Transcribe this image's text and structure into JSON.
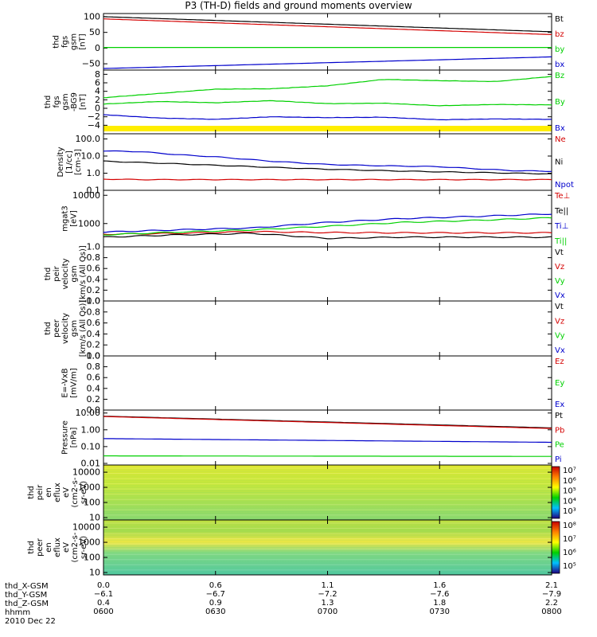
{
  "title": "P3 (TH-D) fields and ground moments overview",
  "date": "2010 Dec 22",
  "colors": {
    "black": "#000000",
    "red": "#d40000",
    "green": "#00d000",
    "blue": "#0000cc",
    "yellow": "#ffee00"
  },
  "chart_data": [
    {
      "type": "line",
      "id": "fgs",
      "ylabel": [
        "thd",
        "fgs",
        "gsm",
        "[nT]"
      ],
      "yrange": [
        -70,
        110
      ],
      "log": false,
      "yticks": [
        {
          "v": 100,
          "l": "100"
        },
        {
          "v": 50,
          "l": "50"
        },
        {
          "v": 0,
          "l": "0"
        },
        {
          "v": -50,
          "l": "−50"
        }
      ],
      "x": [
        0,
        120
      ],
      "series": [
        {
          "name": "Bt",
          "color": "#000000",
          "values": [
            100,
            52
          ]
        },
        {
          "name": "bz",
          "color": "#d40000",
          "values": [
            93,
            43
          ]
        },
        {
          "name": "by",
          "color": "#00d000",
          "values": [
            2,
            2
          ]
        },
        {
          "name": "bx",
          "color": "#0000cc",
          "values": [
            -65,
            -28
          ]
        }
      ]
    },
    {
      "type": "line",
      "id": "fgs_dsl",
      "ylabel": [
        "thd",
        "fgs",
        "gsm",
        "-BG9",
        "[nT]"
      ],
      "yrange": [
        -6,
        9
      ],
      "log": false,
      "yticks": [
        {
          "v": 8,
          "l": "8"
        },
        {
          "v": 6,
          "l": "6"
        },
        {
          "v": 4,
          "l": "4"
        },
        {
          "v": 2,
          "l": "2"
        },
        {
          "v": 0,
          "l": "0"
        },
        {
          "v": -2,
          "l": "−2"
        },
        {
          "v": -4,
          "l": "−4"
        }
      ],
      "x": [
        0,
        15,
        30,
        45,
        60,
        75,
        90,
        105,
        120
      ],
      "series": [
        {
          "name": "Bz",
          "color": "#00d000",
          "values": [
            2.5,
            3.5,
            4.5,
            4.6,
            5.3,
            6.8,
            6.5,
            6.3,
            7.5
          ]
        },
        {
          "name": "By",
          "color": "#00d000",
          "values": [
            1,
            1.6,
            1.3,
            1.8,
            1.1,
            1.2,
            0.6,
            0.9,
            0.8
          ]
        },
        {
          "name": "Bx",
          "color": "#0000cc",
          "values": [
            -1.5,
            -2.3,
            -2.6,
            -2.0,
            -2.2,
            -2.1,
            -2.7,
            -2.5,
            -2.6
          ]
        }
      ]
    },
    {
      "type": "line",
      "id": "density",
      "ylabel": [
        "Density",
        "[1/cc]",
        "[cm-3]"
      ],
      "yrange": [
        0.1,
        200
      ],
      "log": true,
      "yticks": [
        {
          "v": 100,
          "l": "100.0"
        },
        {
          "v": 10,
          "l": "10.0"
        },
        {
          "v": 1,
          "l": "1.0"
        },
        {
          "v": 0.1,
          "l": "0.1"
        }
      ],
      "x": [
        0,
        10,
        20,
        30,
        45,
        60,
        75,
        90,
        100,
        110,
        120
      ],
      "series": [
        {
          "name": "Ne",
          "color": "#d40000",
          "values": [
            0.45,
            0.42,
            0.42,
            0.42,
            0.42,
            0.42,
            0.42,
            0.42,
            0.42,
            0.42,
            0.42
          ]
        },
        {
          "name": "Ni",
          "color": "#000000",
          "values": [
            5,
            4.2,
            3.5,
            2.9,
            2.2,
            1.7,
            1.4,
            1.2,
            1.1,
            1.0,
            0.9
          ]
        },
        {
          "name": "Npot",
          "color": "#0000cc",
          "values": [
            20,
            18,
            12,
            9,
            5,
            3.2,
            2.7,
            2.4,
            1.8,
            1.4,
            1.3
          ]
        }
      ]
    },
    {
      "type": "line",
      "id": "temp",
      "ylabel": [
        "mgat3",
        "[eV]"
      ],
      "yrange": [
        150,
        15000
      ],
      "log": true,
      "yticks": [
        {
          "v": 10000,
          "l": "10000"
        },
        {
          "v": 1000,
          "l": "1000"
        }
      ],
      "x": [
        0,
        20,
        40,
        60,
        80,
        100,
        120
      ],
      "series": [
        {
          "name": "Te⊥",
          "color": "#d40000",
          "values": [
            420,
            450,
            520,
            480,
            470,
            470,
            470
          ]
        },
        {
          "name": "Te||",
          "color": "#000000",
          "values": [
            330,
            400,
            450,
            300,
            330,
            330,
            330
          ]
        },
        {
          "name": "Ti⊥",
          "color": "#0000cc",
          "values": [
            500,
            600,
            700,
            1100,
            1500,
            1800,
            2200
          ]
        },
        {
          "name": "Ti||",
          "color": "#00d000",
          "values": [
            400,
            500,
            600,
            800,
            1100,
            1300,
            1600
          ]
        }
      ]
    },
    {
      "type": "line",
      "id": "peir_v",
      "ylabel": [
        "thd",
        "peir",
        "velocity",
        "gsm",
        "[km/s (All Qs)]"
      ],
      "yrange": [
        0,
        1
      ],
      "log": false,
      "yticks": [
        {
          "v": 1,
          "l": "1.0"
        },
        {
          "v": 0.8,
          "l": "0.8"
        },
        {
          "v": 0.6,
          "l": "0.6"
        },
        {
          "v": 0.4,
          "l": "0.4"
        },
        {
          "v": 0.2,
          "l": "0.2"
        },
        {
          "v": 0,
          "l": "0.0"
        }
      ],
      "series": [
        {
          "name": "Vt",
          "color": "#000000"
        },
        {
          "name": "Vz",
          "color": "#d40000"
        },
        {
          "name": "Vy",
          "color": "#00d000"
        },
        {
          "name": "Vx",
          "color": "#0000cc"
        }
      ]
    },
    {
      "type": "line",
      "id": "peer_v",
      "ylabel": [
        "thd",
        "peer",
        "velocity",
        "gsm",
        "[km/s (All Qs)]"
      ],
      "yrange": [
        0,
        1
      ],
      "log": false,
      "yticks": [
        {
          "v": 1,
          "l": "1.0"
        },
        {
          "v": 0.8,
          "l": "0.8"
        },
        {
          "v": 0.6,
          "l": "0.6"
        },
        {
          "v": 0.4,
          "l": "0.4"
        },
        {
          "v": 0.2,
          "l": "0.2"
        },
        {
          "v": 0,
          "l": "0.0"
        }
      ],
      "series": [
        {
          "name": "Vt",
          "color": "#000000"
        },
        {
          "name": "Vz",
          "color": "#d40000"
        },
        {
          "name": "Vy",
          "color": "#00d000"
        },
        {
          "name": "Vx",
          "color": "#0000cc"
        }
      ]
    },
    {
      "type": "line",
      "id": "efield",
      "ylabel": [
        "E=-VxB",
        "[mV/m]"
      ],
      "yrange": [
        0,
        1
      ],
      "log": false,
      "yticks": [
        {
          "v": 1,
          "l": "1.0"
        },
        {
          "v": 0.8,
          "l": "0.8"
        },
        {
          "v": 0.6,
          "l": "0.6"
        },
        {
          "v": 0.4,
          "l": "0.4"
        },
        {
          "v": 0.2,
          "l": "0.2"
        },
        {
          "v": 0,
          "l": "0.0"
        }
      ],
      "series": [
        {
          "name": "Ez",
          "color": "#d40000"
        },
        {
          "name": "Ey",
          "color": "#00d000"
        },
        {
          "name": "Ex",
          "color": "#0000cc"
        }
      ]
    },
    {
      "type": "line",
      "id": "pressure",
      "ylabel": [
        "Pressure",
        "[nPa]"
      ],
      "yrange": [
        0.008,
        15
      ],
      "log": true,
      "yticks": [
        {
          "v": 10,
          "l": "10.00"
        },
        {
          "v": 1,
          "l": "1.00"
        },
        {
          "v": 0.1,
          "l": "0.10"
        },
        {
          "v": 0.01,
          "l": "0.01"
        }
      ],
      "x": [
        0,
        120
      ],
      "series": [
        {
          "name": "Pt",
          "color": "#000000",
          "values": [
            6.5,
            1.3
          ]
        },
        {
          "name": "Pb",
          "color": "#d40000",
          "values": [
            6.2,
            1.2
          ]
        },
        {
          "name": "Pe",
          "color": "#00d000",
          "values": [
            0.028,
            0.026
          ]
        },
        {
          "name": "Pi",
          "color": "#0000cc",
          "values": [
            0.3,
            0.18
          ]
        }
      ]
    },
    {
      "type": "heatmap",
      "id": "peir_spec",
      "ylabel": [
        "thd",
        "peir",
        "en",
        "eflux",
        "eV",
        "(cm2-s-",
        "sr-eV)"
      ],
      "yrange": [
        7,
        30000
      ],
      "log": true,
      "yticks": [
        {
          "v": 10000,
          "l": "10000"
        },
        {
          "v": 1000,
          "l": "1000"
        },
        {
          "v": 100,
          "l": "100"
        },
        {
          "v": 10,
          "l": "10"
        }
      ],
      "colorbar_ticks": [
        "10⁷",
        "10⁶",
        "10⁵",
        "10⁴",
        "10³"
      ]
    },
    {
      "type": "heatmap",
      "id": "peer_spec",
      "ylabel": [
        "thd",
        "peer",
        "en",
        "eflux",
        "eV",
        "(cm2-s-",
        "sr-eV)"
      ],
      "yrange": [
        7,
        30000
      ],
      "log": true,
      "yticks": [
        {
          "v": 10000,
          "l": "10000"
        },
        {
          "v": 1000,
          "l": "1000"
        },
        {
          "v": 100,
          "l": "100"
        },
        {
          "v": 10,
          "l": "10"
        }
      ],
      "colorbar_ticks": [
        "10⁸",
        "10⁷",
        "10⁶",
        "10⁵"
      ]
    }
  ],
  "time_axis": {
    "rows": [
      {
        "label": "thd_X-GSM",
        "values": [
          "0.0",
          "0.6",
          "1.1",
          "1.6",
          "2.1"
        ]
      },
      {
        "label": "thd_Y-GSM",
        "values": [
          "−6.1",
          "−6.7",
          "−7.2",
          "−7.6",
          "−7.9"
        ]
      },
      {
        "label": "thd_Z-GSM",
        "values": [
          "0.4",
          "0.9",
          "1.3",
          "1.8",
          "2.2"
        ]
      },
      {
        "label": "hhmm",
        "values": [
          "0600",
          "0630",
          "0700",
          "0730",
          "0800"
        ]
      }
    ]
  }
}
